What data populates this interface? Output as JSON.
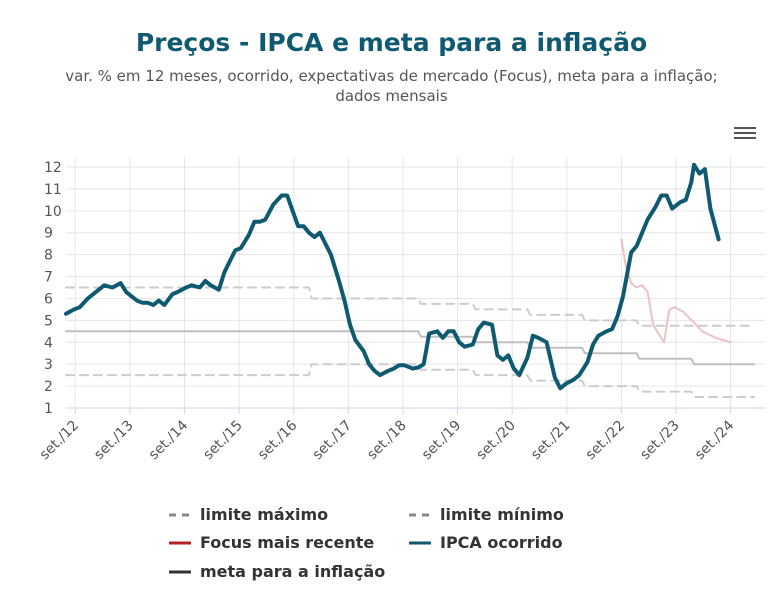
{
  "chart_data": {
    "type": "line",
    "title": "Preços - IPCA e meta para a inflação",
    "subtitle_line1": "var. % em 12 meses, ocorrido, expectativas de mercado (Focus), meta para a inflação;",
    "subtitle_line2": "dados mensais",
    "ylim": [
      1,
      12
    ],
    "yticks": [
      "1",
      "2",
      "3",
      "4",
      "5",
      "6",
      "7",
      "8",
      "9",
      "10",
      "11",
      "12"
    ],
    "x_range": [
      2012.5,
      2025.3
    ],
    "xticks": [
      {
        "label": "set./12",
        "t": 2012.67
      },
      {
        "label": "set./13",
        "t": 2013.67
      },
      {
        "label": "set./14",
        "t": 2014.67
      },
      {
        "label": "set./15",
        "t": 2015.67
      },
      {
        "label": "set./16",
        "t": 2016.67
      },
      {
        "label": "set./17",
        "t": 2017.67
      },
      {
        "label": "set./18",
        "t": 2018.67
      },
      {
        "label": "set./19",
        "t": 2019.67
      },
      {
        "label": "set./20",
        "t": 2020.67
      },
      {
        "label": "set./21",
        "t": 2021.67
      },
      {
        "label": "set./22",
        "t": 2022.67
      },
      {
        "label": "set./23",
        "t": 2023.67
      },
      {
        "label": "set./24",
        "t": 2024.67
      }
    ],
    "series": [
      {
        "name": "limite máximo",
        "color": "#cccccc",
        "style": "dashed",
        "points": [
          [
            2012.5,
            6.5
          ],
          [
            2016.95,
            6.5
          ],
          [
            2017.0,
            6.0
          ],
          [
            2018.95,
            6.0
          ],
          [
            2019.0,
            5.75
          ],
          [
            2019.95,
            5.75
          ],
          [
            2020.0,
            5.5
          ],
          [
            2020.95,
            5.5
          ],
          [
            2021.0,
            5.25
          ],
          [
            2021.95,
            5.25
          ],
          [
            2022.0,
            5.0
          ],
          [
            2022.95,
            5.0
          ],
          [
            2023.0,
            4.75
          ],
          [
            2025.1,
            4.75
          ]
        ]
      },
      {
        "name": "limite mínimo",
        "color": "#cccccc",
        "style": "dashed",
        "points": [
          [
            2012.5,
            2.5
          ],
          [
            2016.95,
            2.5
          ],
          [
            2017.0,
            3.0
          ],
          [
            2018.95,
            3.0
          ],
          [
            2019.0,
            2.75
          ],
          [
            2019.95,
            2.75
          ],
          [
            2020.0,
            2.5
          ],
          [
            2020.95,
            2.5
          ],
          [
            2021.0,
            2.25
          ],
          [
            2021.95,
            2.25
          ],
          [
            2022.0,
            2.0
          ],
          [
            2022.95,
            2.0
          ],
          [
            2023.0,
            1.75
          ],
          [
            2023.95,
            1.75
          ],
          [
            2024.0,
            1.5
          ],
          [
            2025.1,
            1.5
          ]
        ]
      },
      {
        "name": "meta para a inflação",
        "color": "#c0c0c0",
        "style": "solid",
        "points": [
          [
            2012.5,
            4.5
          ],
          [
            2018.95,
            4.5
          ],
          [
            2019.0,
            4.25
          ],
          [
            2019.95,
            4.25
          ],
          [
            2020.0,
            4.0
          ],
          [
            2020.95,
            4.0
          ],
          [
            2021.0,
            3.75
          ],
          [
            2021.95,
            3.75
          ],
          [
            2022.0,
            3.5
          ],
          [
            2022.95,
            3.5
          ],
          [
            2023.0,
            3.25
          ],
          [
            2023.95,
            3.25
          ],
          [
            2024.0,
            3.0
          ],
          [
            2025.1,
            3.0
          ]
        ]
      },
      {
        "name": "Focus mais recente",
        "color": "#e8c4c4",
        "style": "solid",
        "points": [
          [
            2022.67,
            8.7
          ],
          [
            2022.75,
            7.5
          ],
          [
            2022.85,
            6.7
          ],
          [
            2022.95,
            6.5
          ],
          [
            2023.05,
            6.6
          ],
          [
            2023.15,
            6.3
          ],
          [
            2023.25,
            4.8
          ],
          [
            2023.35,
            4.4
          ],
          [
            2023.45,
            4.0
          ],
          [
            2023.55,
            5.5
          ],
          [
            2023.65,
            5.6
          ],
          [
            2023.8,
            5.4
          ],
          [
            2024.0,
            4.9
          ],
          [
            2024.15,
            4.5
          ],
          [
            2024.4,
            4.2
          ],
          [
            2024.67,
            4.0
          ]
        ]
      },
      {
        "name": "IPCA ocorrido",
        "color": "#0f5a70",
        "style": "bold",
        "points": [
          [
            2012.5,
            5.3
          ],
          [
            2012.65,
            5.5
          ],
          [
            2012.75,
            5.6
          ],
          [
            2012.9,
            6.0
          ],
          [
            2013.0,
            6.2
          ],
          [
            2013.1,
            6.4
          ],
          [
            2013.2,
            6.6
          ],
          [
            2013.35,
            6.5
          ],
          [
            2013.5,
            6.7
          ],
          [
            2013.6,
            6.3
          ],
          [
            2013.7,
            6.1
          ],
          [
            2013.8,
            5.9
          ],
          [
            2013.9,
            5.8
          ],
          [
            2014.0,
            5.8
          ],
          [
            2014.1,
            5.7
          ],
          [
            2014.2,
            5.9
          ],
          [
            2014.3,
            5.7
          ],
          [
            2014.45,
            6.2
          ],
          [
            2014.55,
            6.3
          ],
          [
            2014.7,
            6.5
          ],
          [
            2014.8,
            6.6
          ],
          [
            2014.95,
            6.5
          ],
          [
            2015.05,
            6.8
          ],
          [
            2015.15,
            6.6
          ],
          [
            2015.3,
            6.4
          ],
          [
            2015.4,
            7.2
          ],
          [
            2015.5,
            7.7
          ],
          [
            2015.6,
            8.2
          ],
          [
            2015.7,
            8.3
          ],
          [
            2015.85,
            8.9
          ],
          [
            2015.95,
            9.5
          ],
          [
            2016.05,
            9.5
          ],
          [
            2016.15,
            9.6
          ],
          [
            2016.3,
            10.3
          ],
          [
            2016.45,
            10.7
          ],
          [
            2016.55,
            10.7
          ],
          [
            2016.65,
            10.0
          ],
          [
            2016.75,
            9.3
          ],
          [
            2016.85,
            9.3
          ],
          [
            2016.95,
            9.0
          ],
          [
            2017.05,
            8.8
          ],
          [
            2017.15,
            9.0
          ],
          [
            2017.25,
            8.5
          ],
          [
            2017.35,
            8.0
          ],
          [
            2017.5,
            6.8
          ],
          [
            2017.6,
            5.9
          ],
          [
            2017.7,
            4.8
          ],
          [
            2017.8,
            4.1
          ],
          [
            2017.95,
            3.6
          ],
          [
            2018.05,
            3.0
          ],
          [
            2018.15,
            2.7
          ],
          [
            2018.25,
            2.5
          ],
          [
            2018.4,
            2.7
          ],
          [
            2018.5,
            2.8
          ],
          [
            2018.6,
            2.95
          ],
          [
            2018.7,
            2.95
          ],
          [
            2018.85,
            2.8
          ],
          [
            2018.95,
            2.85
          ],
          [
            2019.05,
            3.0
          ],
          [
            2019.15,
            4.4
          ],
          [
            2019.3,
            4.5
          ],
          [
            2019.4,
            4.2
          ],
          [
            2019.5,
            4.5
          ],
          [
            2019.6,
            4.5
          ],
          [
            2019.7,
            4.0
          ],
          [
            2019.8,
            3.8
          ],
          [
            2019.95,
            3.9
          ],
          [
            2020.05,
            4.6
          ],
          [
            2020.15,
            4.9
          ],
          [
            2020.3,
            4.8
          ],
          [
            2020.4,
            3.4
          ],
          [
            2020.5,
            3.2
          ],
          [
            2020.6,
            3.4
          ],
          [
            2020.7,
            2.8
          ],
          [
            2020.8,
            2.5
          ],
          [
            2020.95,
            3.3
          ],
          [
            2021.05,
            4.3
          ],
          [
            2021.15,
            4.2
          ],
          [
            2021.3,
            4.0
          ],
          [
            2021.45,
            2.4
          ],
          [
            2021.55,
            1.9
          ],
          [
            2021.65,
            2.1
          ],
          [
            2021.8,
            2.3
          ],
          [
            2021.9,
            2.5
          ],
          [
            2022.05,
            3.1
          ],
          [
            2022.15,
            3.9
          ],
          [
            2022.25,
            4.3
          ],
          [
            2022.4,
            4.5
          ],
          [
            2022.5,
            4.6
          ],
          [
            2022.6,
            5.2
          ],
          [
            2022.7,
            6.1
          ],
          [
            2022.85,
            8.1
          ],
          [
            2022.95,
            8.4
          ],
          [
            2023.05,
            9.0
          ],
          [
            2023.15,
            9.6
          ],
          [
            2023.3,
            10.2
          ],
          [
            2023.4,
            10.7
          ],
          [
            2023.5,
            10.7
          ],
          [
            2023.6,
            10.1
          ],
          [
            2023.75,
            10.4
          ],
          [
            2023.85,
            10.5
          ],
          [
            2023.95,
            11.3
          ],
          [
            2024.0,
            12.1
          ],
          [
            2024.1,
            11.7
          ],
          [
            2024.2,
            11.9
          ],
          [
            2024.3,
            10.1
          ],
          [
            2024.45,
            8.7
          ]
        ]
      }
    ],
    "legend": [
      {
        "label": "limite máximo",
        "color": "#888888",
        "style": "dashed"
      },
      {
        "label": "limite mínimo",
        "color": "#888888",
        "style": "dashed"
      },
      {
        "label": "Focus mais recente",
        "color": "#b22222",
        "style": "solid"
      },
      {
        "label": "IPCA ocorrido",
        "color": "#0f5a70",
        "style": "solid"
      },
      {
        "label": "meta para a inflação",
        "color": "#333333",
        "style": "solid"
      }
    ]
  },
  "menu_icon": "hamburger-menu-icon"
}
